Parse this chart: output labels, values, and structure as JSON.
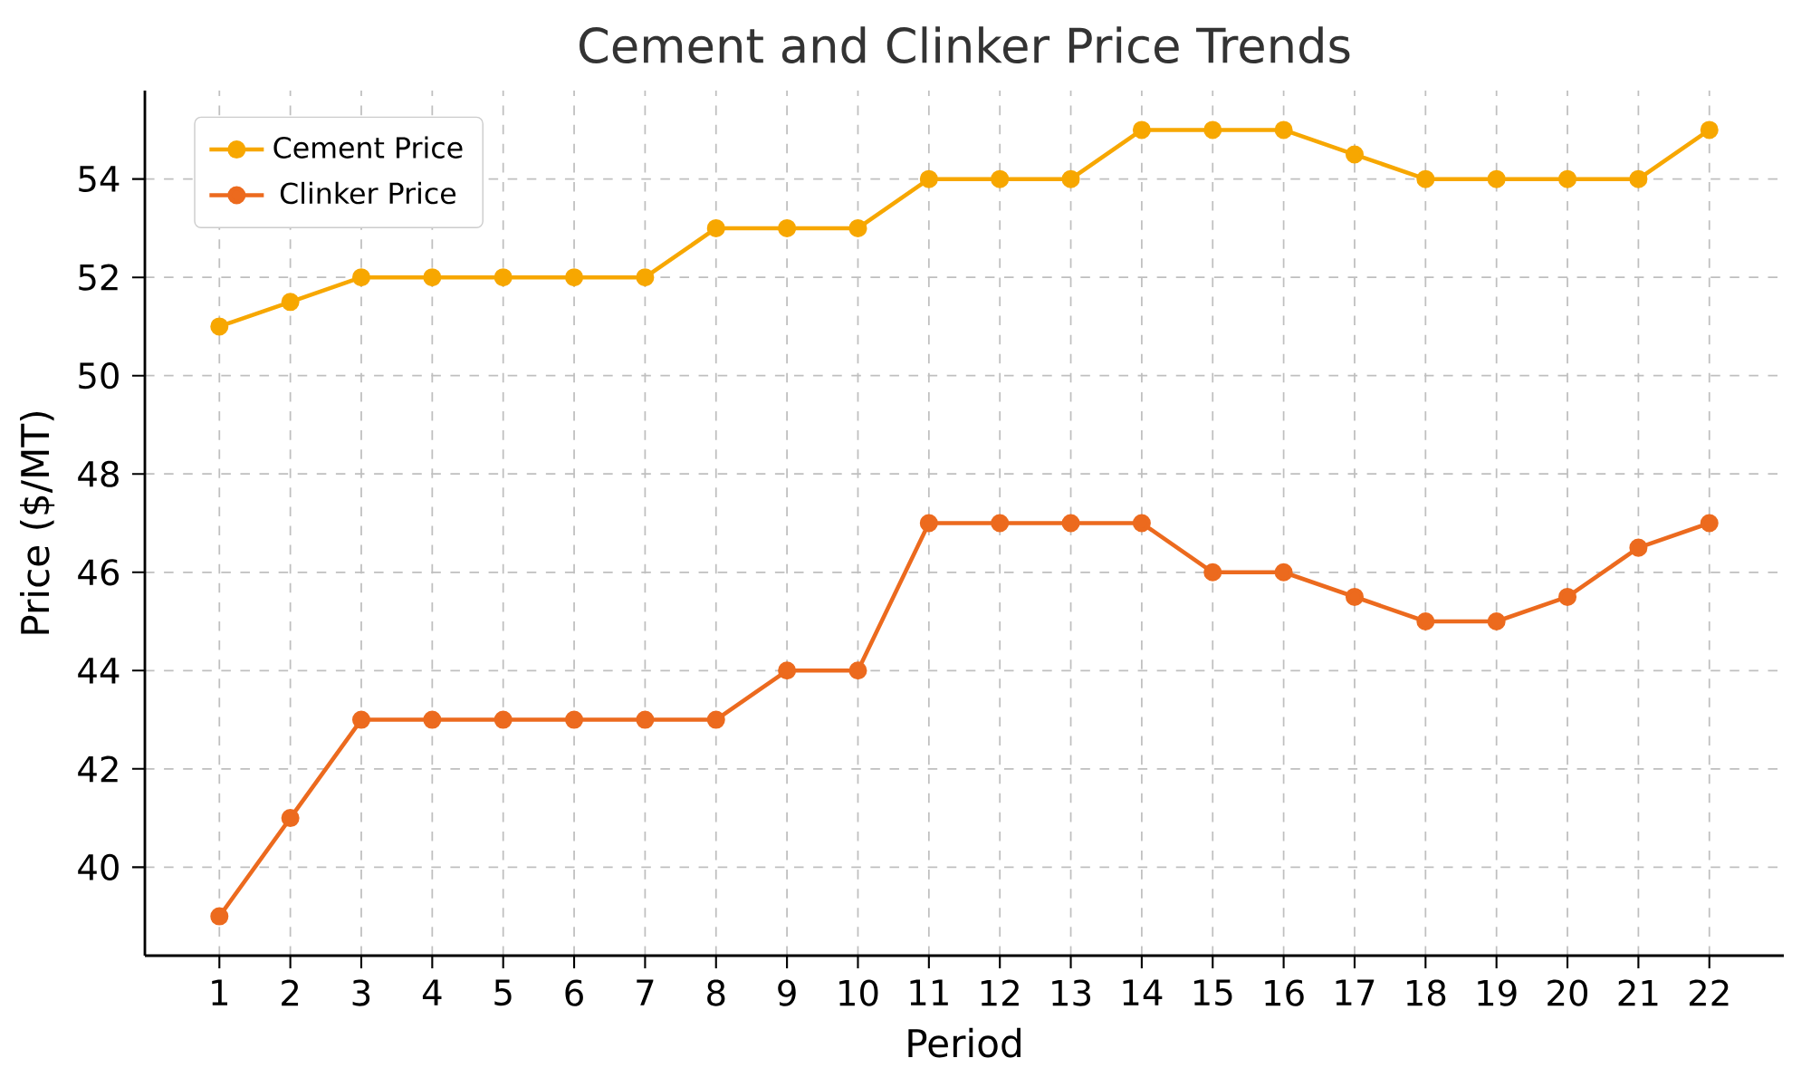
{
  "chart_data": {
    "type": "line",
    "title": "Cement and Clinker Price Trends",
    "xlabel": "Period",
    "ylabel": "Price ($/MT)",
    "x": [
      1,
      2,
      3,
      4,
      5,
      6,
      7,
      8,
      9,
      10,
      11,
      12,
      13,
      14,
      15,
      16,
      17,
      18,
      19,
      20,
      21,
      22
    ],
    "series": [
      {
        "name": "Cement Price",
        "color": "#f7a700",
        "values": [
          51,
          51.5,
          52,
          52,
          52,
          52,
          52,
          53,
          53,
          53,
          54,
          54,
          54,
          55,
          55,
          55,
          54.5,
          54,
          54,
          54,
          54,
          55
        ]
      },
      {
        "name": "Clinker Price",
        "color": "#ec6a1e",
        "values": [
          39,
          41,
          43,
          43,
          43,
          43,
          43,
          43,
          44,
          44,
          47,
          47,
          47,
          47,
          46,
          46,
          45.5,
          45,
          45,
          45.5,
          46.5,
          47
        ]
      }
    ],
    "xlim": [
      -0.05,
      23.05
    ],
    "ylim": [
      38.2,
      55.8
    ],
    "xticks": [
      1,
      2,
      3,
      4,
      5,
      6,
      7,
      8,
      9,
      10,
      11,
      12,
      13,
      14,
      15,
      16,
      17,
      18,
      19,
      20,
      21,
      22
    ],
    "yticks": [
      40,
      42,
      44,
      46,
      48,
      50,
      52,
      54
    ],
    "grid": true,
    "legend": "top left",
    "marker": "circle",
    "line_style": "solid"
  }
}
